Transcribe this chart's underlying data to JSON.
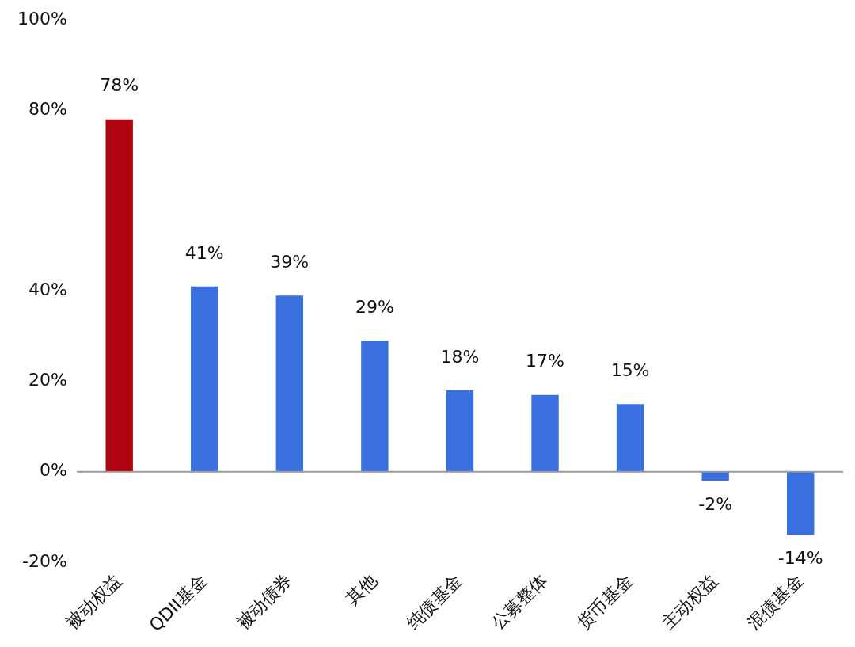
{
  "chart_data": {
    "type": "bar",
    "categories": [
      "被动权益",
      "QDII基金",
      "被动债券",
      "其他",
      "纯债基金",
      "公募整体",
      "货币基金",
      "主动权益",
      "混债基金"
    ],
    "values": [
      78,
      41,
      39,
      29,
      18,
      17,
      15,
      -2,
      -14
    ],
    "value_labels": [
      "78%",
      "41%",
      "39%",
      "29%",
      "18%",
      "17%",
      "15%",
      "-2%",
      "-14%"
    ],
    "colors": [
      "#b00510",
      "#3a6fe0",
      "#3a6fe0",
      "#3a6fe0",
      "#3a6fe0",
      "#3a6fe0",
      "#3a6fe0",
      "#3a6fe0",
      "#3a6fe0"
    ],
    "ylim": [
      -20,
      100
    ],
    "yticks": [
      {
        "value": 100,
        "label": "100%"
      },
      {
        "value": 80,
        "label": "80%"
      },
      {
        "value": 40,
        "label": "40%"
      },
      {
        "value": 20,
        "label": "20%"
      },
      {
        "value": 0,
        "label": "0%"
      },
      {
        "value": -20,
        "label": "-20%"
      }
    ],
    "ref_lines": [
      {
        "axis": "y",
        "value": 0,
        "color": "#999999"
      }
    ],
    "grid": false,
    "legend": false
  }
}
